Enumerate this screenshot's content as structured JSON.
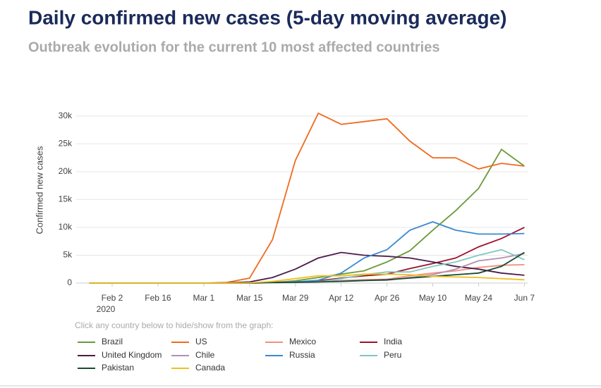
{
  "chart_data": {
    "type": "line",
    "title": "Daily confirmed new cases (5-day moving average)",
    "subtitle": "Outbreak evolution for the current 10 most affected countries",
    "y_label": "Confirmed new cases",
    "legend_hint": "Click any country below to hide/show from the graph:",
    "x_year_label": "2020",
    "x": [
      "2020-01-26",
      "2020-02-02",
      "2020-02-09",
      "2020-02-16",
      "2020-02-23",
      "2020-03-01",
      "2020-03-08",
      "2020-03-15",
      "2020-03-22",
      "2020-03-29",
      "2020-04-05",
      "2020-04-12",
      "2020-04-19",
      "2020-04-26",
      "2020-05-03",
      "2020-05-10",
      "2020-05-17",
      "2020-05-24",
      "2020-05-31",
      "2020-06-07"
    ],
    "xlim": [
      "2020-01-22",
      "2020-06-08"
    ],
    "xticks": [
      {
        "value": "2020-02-02",
        "label": "Feb 2"
      },
      {
        "value": "2020-02-16",
        "label": "Feb 16"
      },
      {
        "value": "2020-03-01",
        "label": "Mar 1"
      },
      {
        "value": "2020-03-15",
        "label": "Mar 15"
      },
      {
        "value": "2020-03-29",
        "label": "Mar 29"
      },
      {
        "value": "2020-04-12",
        "label": "Apr 12"
      },
      {
        "value": "2020-04-26",
        "label": "Apr 26"
      },
      {
        "value": "2020-05-10",
        "label": "May 10"
      },
      {
        "value": "2020-05-24",
        "label": "May 24"
      },
      {
        "value": "2020-06-07",
        "label": "Jun 7"
      }
    ],
    "ylim": [
      0,
      32500
    ],
    "yticks": [
      0,
      {
        "value": 5000,
        "label": "5k"
      },
      {
        "value": 10000,
        "label": "10k"
      },
      {
        "value": 15000,
        "label": "15k"
      },
      {
        "value": 20000,
        "label": "20k"
      },
      {
        "value": 25000,
        "label": "25k"
      },
      {
        "value": 30000,
        "label": "30k"
      }
    ],
    "grid": true,
    "series": [
      {
        "name": "Brazil",
        "color": "#6a9a3a",
        "values": [
          0,
          0,
          0,
          0,
          0,
          0,
          0,
          10,
          100,
          400,
          1000,
          1600,
          2200,
          3800,
          5800,
          9500,
          13000,
          17000,
          24000,
          21000
        ]
      },
      {
        "name": "US",
        "color": "#f06a1e",
        "values": [
          0,
          0,
          0,
          0,
          0,
          0,
          100,
          900,
          7800,
          22000,
          30500,
          28500,
          29000,
          29500,
          25500,
          22500,
          22500,
          20500,
          21500,
          21000
        ]
      },
      {
        "name": "Mexico",
        "color": "#f09080",
        "values": [
          0,
          0,
          0,
          0,
          0,
          0,
          0,
          10,
          50,
          150,
          300,
          450,
          600,
          700,
          1300,
          1800,
          2200,
          2800,
          3200,
          3300
        ]
      },
      {
        "name": "India",
        "color": "#a0102a",
        "values": [
          0,
          0,
          0,
          0,
          0,
          0,
          10,
          20,
          80,
          150,
          400,
          900,
          1300,
          1600,
          2600,
          3500,
          4500,
          6500,
          8000,
          10000
        ]
      },
      {
        "name": "United Kingdom",
        "color": "#4a1a4a",
        "values": [
          0,
          0,
          0,
          0,
          0,
          0,
          50,
          200,
          1000,
          2500,
          4500,
          5500,
          5000,
          4800,
          4500,
          3800,
          3000,
          2500,
          1800,
          1400
        ]
      },
      {
        "name": "Chile",
        "color": "#b090b0",
        "values": [
          0,
          0,
          0,
          0,
          0,
          0,
          0,
          50,
          150,
          250,
          300,
          400,
          450,
          500,
          1000,
          1500,
          2500,
          4000,
          4500,
          5300
        ]
      },
      {
        "name": "Russia",
        "color": "#3a8ad0",
        "values": [
          0,
          0,
          0,
          0,
          0,
          0,
          0,
          10,
          50,
          200,
          500,
          1800,
          4500,
          6000,
          9500,
          11000,
          9500,
          8800,
          8800,
          8900
        ]
      },
      {
        "name": "Peru",
        "color": "#80c8c0",
        "values": [
          0,
          0,
          0,
          0,
          0,
          0,
          0,
          10,
          50,
          100,
          200,
          800,
          1500,
          2000,
          2000,
          3000,
          3800,
          5000,
          6000,
          4200
        ]
      },
      {
        "name": "Pakistan",
        "color": "#1a4a30",
        "values": [
          0,
          0,
          0,
          0,
          0,
          0,
          0,
          20,
          100,
          150,
          200,
          300,
          450,
          600,
          900,
          1200,
          1500,
          1800,
          3000,
          5500
        ]
      },
      {
        "name": "Canada",
        "color": "#f0c020",
        "values": [
          0,
          0,
          0,
          0,
          0,
          0,
          10,
          50,
          300,
          800,
          1300,
          1300,
          1600,
          1600,
          1500,
          1200,
          1100,
          1000,
          800,
          600
        ]
      }
    ]
  }
}
